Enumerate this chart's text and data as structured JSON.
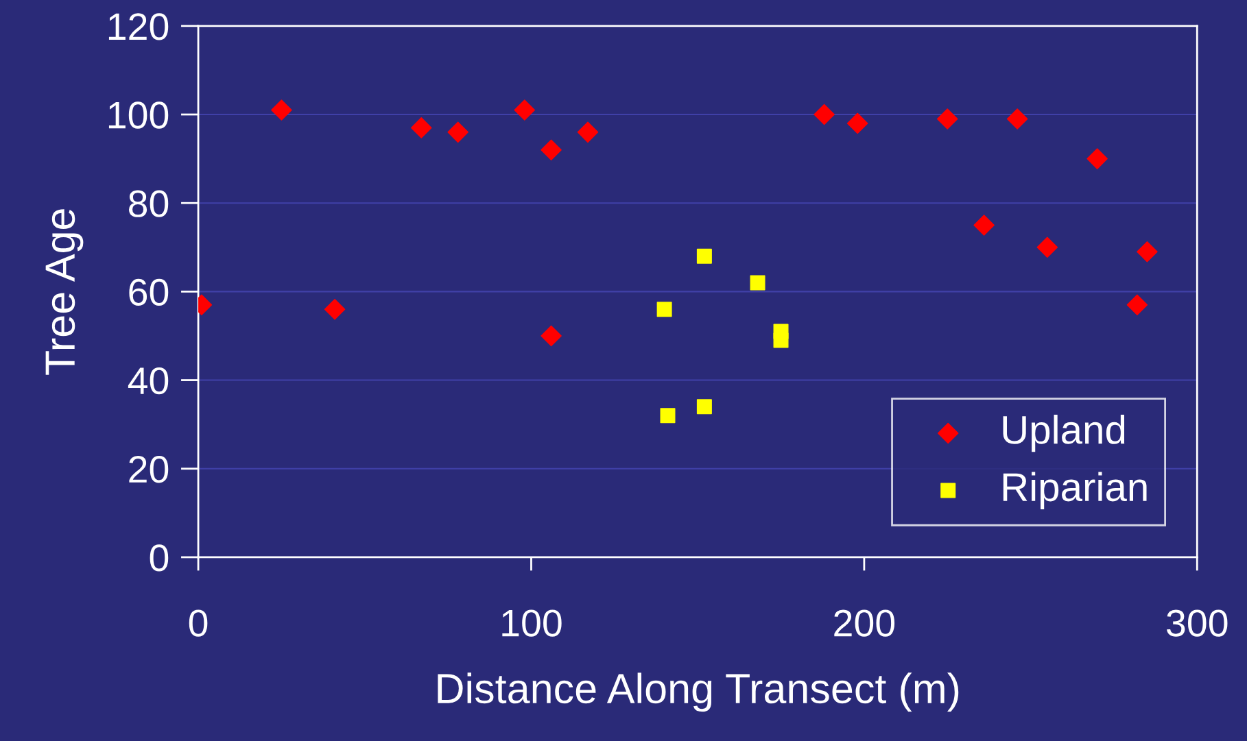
{
  "chart_data": {
    "type": "scatter",
    "xlabel": "Distance Along Transect (m)",
    "ylabel": "Tree Age",
    "xlim": [
      0,
      300
    ],
    "xticks": [
      0,
      100,
      200,
      300
    ],
    "ylim": [
      0,
      120
    ],
    "yticks": [
      0,
      20,
      40,
      60,
      80,
      100,
      120
    ],
    "grid": "y",
    "legend": "bottom right",
    "series": [
      {
        "name": "Upland",
        "color": "#ff0000",
        "marker": "diamond",
        "x": [
          1,
          25,
          41,
          67,
          78,
          98,
          106,
          106,
          117,
          188,
          198,
          225,
          236,
          246,
          255,
          270,
          282,
          285
        ],
        "values": [
          57,
          101,
          56,
          97,
          96,
          101,
          92,
          50,
          96,
          100,
          98,
          99,
          75,
          99,
          70,
          90,
          57,
          69
        ]
      },
      {
        "name": "Riparian",
        "color": "#ffff00",
        "marker": "square",
        "x": [
          140,
          141,
          152,
          152,
          168,
          175,
          175
        ],
        "values": [
          56,
          32,
          68,
          34,
          62,
          51,
          49
        ]
      }
    ]
  }
}
